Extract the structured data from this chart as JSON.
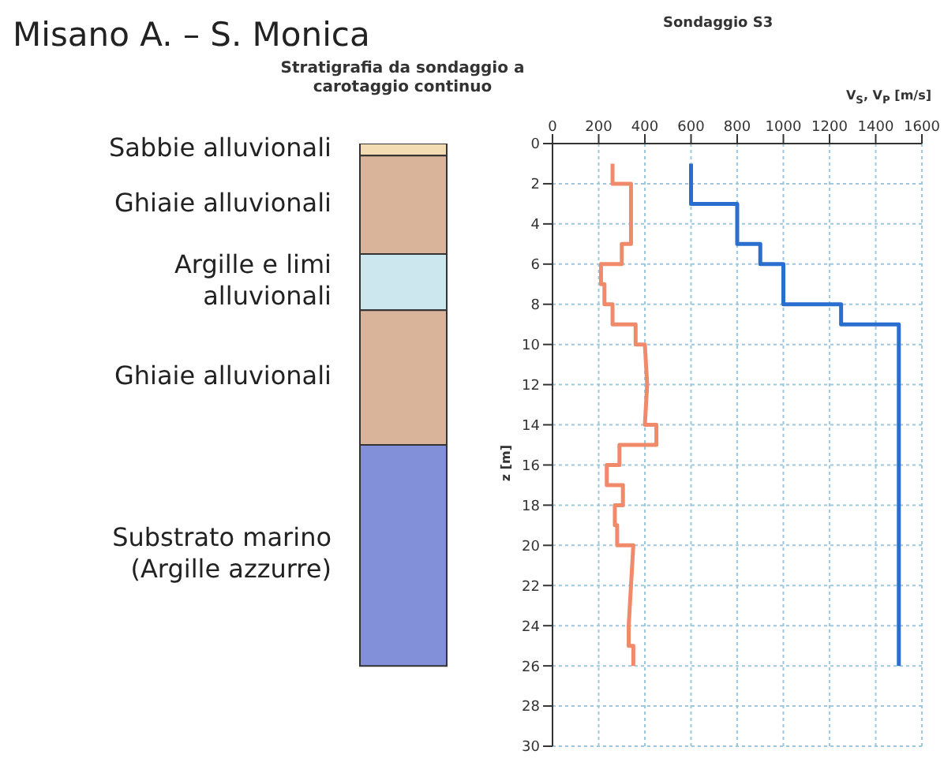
{
  "chart_data": [
    {
      "type": "bar",
      "title": "Misano A. – S. Monica",
      "subtitle": "Stratigrafia da sondaggio a carotaggio continuo",
      "stacked": true,
      "categories": [
        null
      ],
      "ylim": [
        30,
        0
      ],
      "tick_labels": false,
      "series": [
        {
          "name": "Sabbie alluvionali",
          "color": "#f3dcb4",
          "values": [
            0.6
          ]
        },
        {
          "name": "Ghiaie alluvionali",
          "color": "#d9b49a",
          "values": [
            4.9
          ]
        },
        {
          "name": "Argille e limi alluvionali",
          "color": "#cde7ee",
          "values": [
            2.8
          ]
        },
        {
          "name": "Ghiaie alluvionali",
          "color": "#d9b49a",
          "values": [
            6.7
          ]
        },
        {
          "name": "Substrato marino (Argille azzurre)",
          "color": "#8190d8",
          "values": [
            11
          ]
        }
      ]
    },
    {
      "type": "line",
      "title": "Sondaggio S3",
      "xlabel": "V$_{S}$, V$_{P}$ [m/s]",
      "ylabel": "z [m]",
      "xlim": [
        0,
        1600
      ],
      "xticks": [
        0,
        200,
        400,
        600,
        800,
        1000,
        1200,
        1400,
        1600
      ],
      "ylim": [
        30,
        0
      ],
      "yticks": [
        0,
        2,
        4,
        6,
        8,
        10,
        12,
        14,
        16,
        18,
        20,
        22,
        24,
        26,
        28,
        30
      ],
      "grid": true,
      "marker": "none",
      "line_style": "solid",
      "series": [
        {
          "color": "#f08a6a",
          "x": [
            260,
            260,
            340,
            340,
            300,
            300,
            210,
            210,
            225,
            225,
            260,
            260,
            360,
            360,
            400,
            410,
            400,
            450,
            450,
            290,
            290,
            235,
            235,
            305,
            305,
            270,
            270,
            280,
            280,
            350,
            330,
            330,
            350,
            350
          ],
          "values": [
            1,
            2,
            2,
            5,
            5,
            6,
            6,
            7,
            7,
            8,
            8,
            9,
            9,
            10,
            10,
            12,
            14,
            14,
            15,
            15,
            16,
            16,
            17,
            17,
            18,
            18,
            19,
            19,
            20,
            20,
            24,
            25,
            25,
            26
          ]
        },
        {
          "color": "#2a6fd0",
          "x": [
            600,
            600,
            800,
            800,
            900,
            900,
            1000,
            1000,
            1250,
            1250,
            1500,
            1500
          ],
          "values": [
            1,
            3,
            3,
            5,
            5,
            6,
            6,
            8,
            8,
            9,
            9,
            26
          ]
        }
      ]
    }
  ]
}
